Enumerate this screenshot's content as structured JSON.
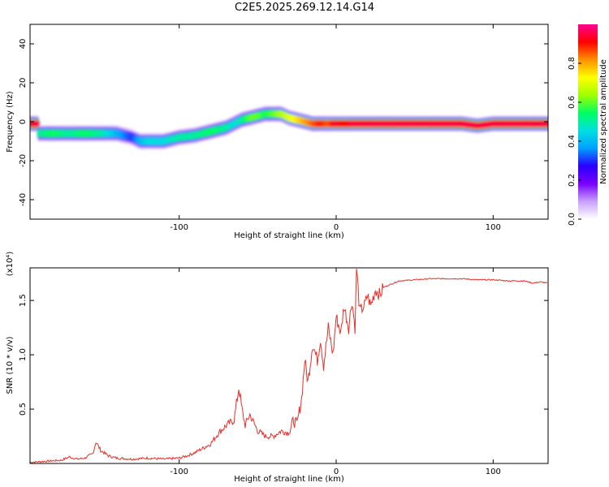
{
  "title": "C2E5.2025.269.12.14.G14",
  "chart_data": [
    {
      "type": "heatmap",
      "xlabel": "Height of straight line (km)",
      "ylabel": "Frequency (Hz)",
      "xlim": [
        -195,
        135
      ],
      "ylim": [
        -50,
        50
      ],
      "xticks": [
        -100,
        0,
        100
      ],
      "yticks": [
        -40,
        -20,
        0,
        20,
        40
      ],
      "xtick_labels": [
        "-100",
        "0",
        "100"
      ],
      "ytick_labels": [
        "-40",
        "-20",
        "0",
        "20",
        "40"
      ],
      "colorbar": {
        "label": "Normalized spectral amplitude",
        "range": [
          0,
          1
        ],
        "ticks": [
          0.0,
          0.2,
          0.4,
          0.6,
          0.8
        ],
        "tick_labels": [
          "0.0",
          "0.2",
          "0.4",
          "0.6",
          "0.8"
        ],
        "colors": [
          "#ffffff",
          "#c8a0ff",
          "#7a00ff",
          "#2a00ff",
          "#00a0ff",
          "#00e0e0",
          "#00ff60",
          "#a0ff00",
          "#ffff00",
          "#ff9000",
          "#ff0000",
          "#ff0090"
        ]
      },
      "ridge": {
        "x": [
          -190,
          -180,
          -170,
          -160,
          -150,
          -140,
          -130,
          -125,
          -120,
          -110,
          -100,
          -90,
          -80,
          -70,
          -65,
          -60,
          -55,
          -50,
          -45,
          -40,
          -35,
          -30,
          -25,
          -20,
          -15,
          -10,
          -5,
          0,
          5,
          10,
          20,
          30,
          40,
          50,
          60,
          70,
          80,
          90,
          100,
          110,
          120,
          135
        ],
        "y": [
          -6,
          -6,
          -6,
          -6,
          -6,
          -6,
          -8,
          -10,
          -10,
          -10,
          -8,
          -7,
          -5,
          -3,
          -1,
          1,
          2,
          3,
          4,
          4,
          4,
          2,
          1,
          0,
          -1,
          -1,
          -1,
          -1,
          -1,
          -1,
          -1,
          -1,
          -1,
          -1,
          -1,
          -1,
          -1,
          -2,
          -1,
          -1,
          -1,
          -1
        ],
        "amplitude": [
          0.5,
          0.55,
          0.5,
          0.55,
          0.5,
          0.4,
          0.3,
          0.4,
          0.45,
          0.45,
          0.5,
          0.5,
          0.55,
          0.5,
          0.45,
          0.5,
          0.6,
          0.6,
          0.55,
          0.6,
          0.65,
          0.7,
          0.75,
          0.8,
          0.85,
          0.9,
          0.85,
          0.95,
          0.9,
          0.95,
          0.95,
          0.95,
          0.95,
          0.95,
          0.95,
          0.95,
          0.95,
          0.95,
          0.95,
          0.95,
          0.95,
          0.95
        ]
      }
    },
    {
      "type": "line",
      "xlabel": "Height of straight line (km)",
      "ylabel": "SNR (10 * v/v)",
      "y_scale_label": "(x10⁴)",
      "xlim": [
        -195,
        135
      ],
      "ylim": [
        0,
        1.8
      ],
      "xticks": [
        -100,
        0,
        100
      ],
      "yticks": [
        0.5,
        1.0,
        1.5
      ],
      "xtick_labels": [
        "-100",
        "0",
        "100"
      ],
      "ytick_labels": [
        "0.5",
        "1.0",
        "1.5"
      ],
      "color": "#e8302a",
      "series": [
        {
          "name": "SNR",
          "x": [
            -195,
            -185,
            -175,
            -170,
            -165,
            -160,
            -155,
            -153,
            -150,
            -145,
            -140,
            -130,
            -120,
            -110,
            -100,
            -95,
            -90,
            -85,
            -80,
            -75,
            -70,
            -65,
            -62,
            -60,
            -58,
            -55,
            -50,
            -45,
            -40,
            -35,
            -30,
            -27,
            -25,
            -22,
            -20,
            -18,
            -15,
            -12,
            -10,
            -8,
            -5,
            -2,
            0,
            3,
            5,
            8,
            10,
            12,
            13,
            15,
            18,
            20,
            22,
            25,
            28,
            30,
            35,
            40,
            50,
            60,
            70,
            80,
            90,
            100,
            110,
            120,
            125,
            130,
            135
          ],
          "y": [
            0.01,
            0.02,
            0.03,
            0.06,
            0.04,
            0.05,
            0.09,
            0.2,
            0.12,
            0.07,
            0.05,
            0.04,
            0.05,
            0.04,
            0.05,
            0.07,
            0.1,
            0.14,
            0.18,
            0.28,
            0.35,
            0.4,
            0.7,
            0.5,
            0.35,
            0.45,
            0.3,
            0.25,
            0.25,
            0.3,
            0.28,
            0.4,
            0.35,
            0.6,
            0.95,
            0.75,
            1.1,
            0.95,
            1.15,
            0.9,
            1.25,
            1.0,
            1.35,
            1.2,
            1.45,
            1.25,
            1.5,
            1.25,
            1.8,
            1.4,
            1.45,
            1.55,
            1.45,
            1.6,
            1.55,
            1.62,
            1.65,
            1.68,
            1.69,
            1.7,
            1.7,
            1.7,
            1.69,
            1.69,
            1.68,
            1.68,
            1.66,
            1.67,
            1.66
          ]
        }
      ]
    }
  ]
}
